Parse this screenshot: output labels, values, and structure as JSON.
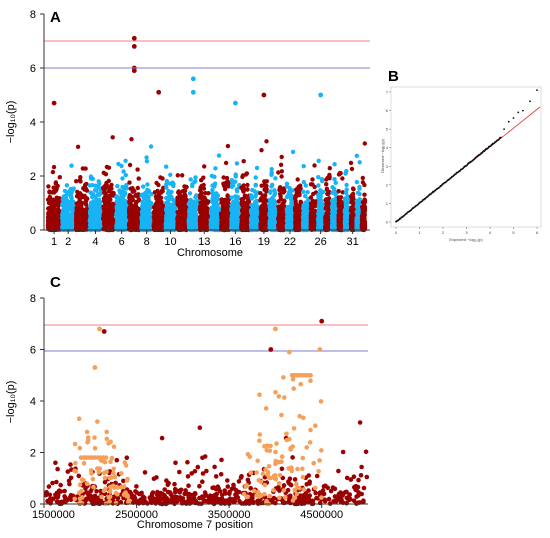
{
  "panels": {
    "a_label": "A",
    "b_label": "B",
    "c_label": "C"
  },
  "colors": {
    "dark_red": "#9b0000",
    "light_blue": "#17b4f5",
    "orange": "#f4a05a",
    "red_line": "#f08080",
    "blue_line": "#7b7bdc",
    "qq_line": "#e63232"
  },
  "chart_data": [
    {
      "panel": "A",
      "type": "scatter",
      "subtype": "manhattan",
      "xlabel": "Chromosome",
      "ylabel": "−log₁₀(p)",
      "xticks": [
        "1",
        "2",
        "4",
        "6",
        "8",
        "10",
        "13",
        "16",
        "19",
        "22",
        "26",
        "31"
      ],
      "yticks": [
        0,
        2,
        4,
        6,
        8
      ],
      "ylim": [
        0,
        8
      ],
      "chromosomes": 33,
      "alternating_colors": [
        "#9b0000",
        "#17b4f5"
      ],
      "thresholds": [
        {
          "y": 7,
          "color": "#f08080"
        },
        {
          "y": 6,
          "color": "#7b7bdc"
        }
      ],
      "top_hits": [
        {
          "chromosome": 7,
          "y": 7.1
        },
        {
          "chromosome": 7,
          "y": 6.8
        },
        {
          "chromosome": 7,
          "y": 6.0
        },
        {
          "chromosome": 7,
          "y": 5.9
        },
        {
          "chromosome": 12,
          "y": 5.6
        },
        {
          "chromosome": 12,
          "y": 5.1
        },
        {
          "chromosome": 9,
          "y": 5.1
        },
        {
          "chromosome": 16,
          "y": 4.7
        },
        {
          "chromosome": 26,
          "y": 5.0
        },
        {
          "chromosome": 19,
          "y": 5.0
        },
        {
          "chromosome": 1,
          "y": 4.7
        }
      ],
      "grid": false
    },
    {
      "panel": "B",
      "type": "scatter",
      "subtype": "qq-plot",
      "xlabel": "Expected −log₁₀(p)",
      "ylabel": "Observed −log₁₀(p)",
      "xticks": [
        0,
        1,
        2,
        3,
        4,
        5,
        6
      ],
      "yticks": [
        0,
        1,
        2,
        3,
        4,
        5,
        6,
        7
      ],
      "xlim": [
        0,
        6
      ],
      "ylim": [
        0,
        7
      ],
      "points_follow_diagonal_until": 4.5,
      "tail_points": [
        {
          "x": 4.6,
          "y": 5.0
        },
        {
          "x": 4.8,
          "y": 5.4
        },
        {
          "x": 5.0,
          "y": 5.6
        },
        {
          "x": 5.2,
          "y": 5.9
        },
        {
          "x": 5.4,
          "y": 6.0
        },
        {
          "x": 5.7,
          "y": 6.5
        },
        {
          "x": 6.0,
          "y": 7.1
        }
      ]
    },
    {
      "panel": "C",
      "type": "scatter",
      "subtype": "regional-association",
      "xlabel": "Chromosome 7 position",
      "ylabel": "−log₁₀(p)",
      "xticks": [
        "1500000",
        "2500000",
        "3500000",
        "4500000"
      ],
      "xtick_values": [
        1500000,
        2500000,
        3500000,
        4500000
      ],
      "yticks": [
        0,
        2,
        4,
        6,
        8
      ],
      "xlim": [
        1500000,
        5000000
      ],
      "ylim": [
        0,
        8
      ],
      "thresholds": [
        {
          "y": 7,
          "color": "#f08080"
        },
        {
          "y": 6,
          "color": "#7b7bdc"
        }
      ],
      "highlight_points": [
        {
          "x": 2100000,
          "y": 6.8,
          "color": "orange"
        },
        {
          "x": 2150000,
          "y": 6.7,
          "color": "dark_red"
        },
        {
          "x": 2050000,
          "y": 5.3,
          "color": "orange"
        },
        {
          "x": 3950000,
          "y": 6.0,
          "color": "dark_red"
        },
        {
          "x": 4000000,
          "y": 6.8,
          "color": "orange"
        },
        {
          "x": 4150000,
          "y": 5.9,
          "color": "orange"
        },
        {
          "x": 4500000,
          "y": 7.1,
          "color": "dark_red"
        },
        {
          "x": 4480000,
          "y": 6.0,
          "color": "orange"
        }
      ]
    }
  ]
}
